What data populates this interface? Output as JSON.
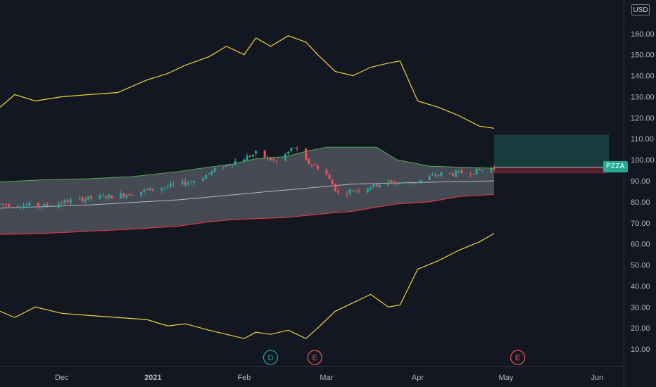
{
  "chart_data": {
    "type": "candlestick",
    "symbol": "PZZA",
    "currency": "USD",
    "y_axis": {
      "ticks": [
        "10.00",
        "20.00",
        "30.00",
        "40.00",
        "50.00",
        "60.00",
        "70.00",
        "80.00",
        "90.00",
        "100.00",
        "110.00",
        "120.00",
        "130.00",
        "140.00",
        "150.00",
        "160.00"
      ],
      "range": [
        2,
        176
      ]
    },
    "x_axis": {
      "ticks": [
        "Dec",
        "2021",
        "Feb",
        "Mar",
        "Apr",
        "May",
        "Jun"
      ],
      "range": [
        "2020-11-10",
        "2021-06-10"
      ]
    },
    "event_markers": [
      {
        "label": "D",
        "date": "2021-02-10",
        "kind": "dividend",
        "color": "#26a69a"
      },
      {
        "label": "E",
        "date": "2021-02-25",
        "kind": "earnings",
        "color": "#ef5350"
      },
      {
        "label": "E",
        "date": "2021-05-05",
        "kind": "earnings",
        "color": "#ef5350"
      }
    ],
    "bollinger_inner": {
      "dates": [
        "2020-11-10",
        "2020-11-25",
        "2020-12-10",
        "2020-12-25",
        "2021-01-10",
        "2021-01-20",
        "2021-01-28",
        "2021-02-05",
        "2021-02-15",
        "2021-02-22",
        "2021-03-01",
        "2021-03-10",
        "2021-03-18",
        "2021-03-25",
        "2021-04-05",
        "2021-04-15",
        "2021-04-27"
      ],
      "upper": [
        89.5,
        90.5,
        91,
        92,
        94.5,
        96.5,
        98,
        100.5,
        101.5,
        104,
        106,
        106,
        106,
        100,
        97,
        96.5,
        96
      ],
      "lower": [
        64.5,
        65,
        66,
        67,
        68.5,
        70.5,
        71.5,
        72,
        72.5,
        73.5,
        74.5,
        75.5,
        77.5,
        79,
        80,
        82.5,
        83.5
      ]
    },
    "middle_line": {
      "dates": [
        "2020-11-10",
        "2020-12-10",
        "2021-01-10",
        "2021-02-10",
        "2021-03-10",
        "2021-04-10",
        "2021-04-27"
      ],
      "values": [
        77,
        78.5,
        81,
        85,
        88.5,
        89.5,
        90
      ]
    },
    "yellow_upper": {
      "dates": [
        "2020-11-10",
        "2020-11-15",
        "2020-11-22",
        "2020-12-01",
        "2020-12-10",
        "2020-12-20",
        "2020-12-30",
        "2021-01-06",
        "2021-01-12",
        "2021-01-20",
        "2021-01-26",
        "2021-02-01",
        "2021-02-05",
        "2021-02-10",
        "2021-02-16",
        "2021-02-22",
        "2021-02-26",
        "2021-03-04",
        "2021-03-10",
        "2021-03-16",
        "2021-03-22",
        "2021-03-26",
        "2021-04-01",
        "2021-04-08",
        "2021-04-15",
        "2021-04-22",
        "2021-04-27"
      ],
      "values": [
        125,
        131,
        128,
        130,
        131,
        132,
        138,
        141,
        145,
        149,
        154,
        150,
        158,
        154,
        159,
        156,
        150,
        142,
        140,
        144,
        146,
        147,
        128,
        125,
        121,
        116,
        115
      ]
    },
    "yellow_lower": {
      "dates": [
        "2020-11-10",
        "2020-11-15",
        "2020-11-22",
        "2020-12-01",
        "2020-12-10",
        "2020-12-20",
        "2020-12-30",
        "2021-01-06",
        "2021-01-12",
        "2021-01-20",
        "2021-01-26",
        "2021-02-01",
        "2021-02-05",
        "2021-02-10",
        "2021-02-16",
        "2021-02-22",
        "2021-02-26",
        "2021-03-04",
        "2021-03-10",
        "2021-03-16",
        "2021-03-22",
        "2021-03-26",
        "2021-04-01",
        "2021-04-08",
        "2021-04-15",
        "2021-04-22",
        "2021-04-27"
      ],
      "values": [
        28,
        25,
        30,
        27,
        26,
        25,
        24,
        21,
        22,
        19,
        17,
        15,
        18,
        17,
        19,
        15,
        20,
        28,
        32,
        36,
        30,
        31,
        48,
        52,
        57,
        61,
        65
      ]
    },
    "position_box": {
      "start": "2021-04-27",
      "end": "2021-06-05",
      "target": 112,
      "entry": 96.5,
      "stop": 93.5
    }
  }
}
